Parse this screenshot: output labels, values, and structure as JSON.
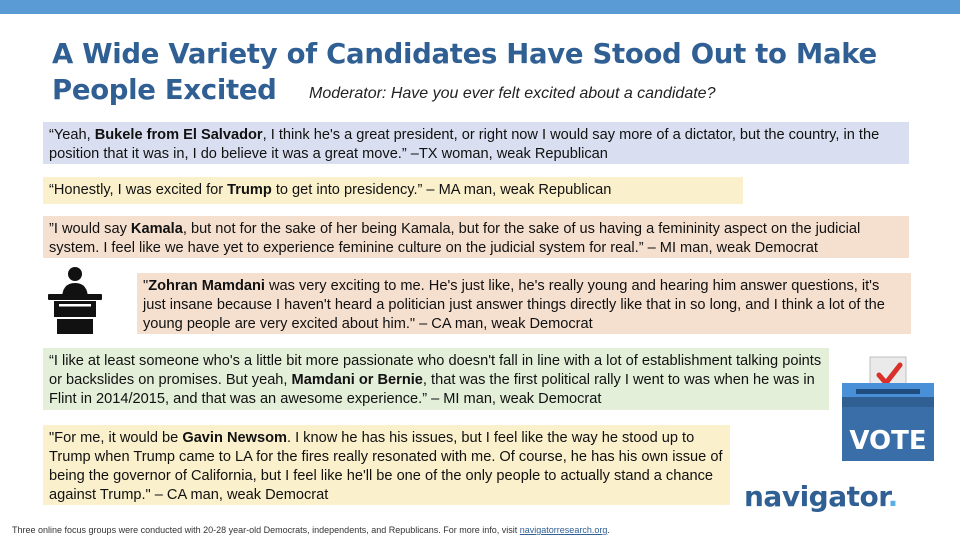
{
  "title": "A Wide Variety of Candidates Have Stood Out to Make People Excited",
  "moderator": "Moderator: Have you ever felt excited about a candidate?",
  "quotes": [
    {
      "pre": "“Yeah, ",
      "name": "Bukele from El Salvador",
      "post": ", I think he's a great president, or right now I would say more of a dictator, but the country, in the position that it was in, I do believe it was a great move.” –TX woman, weak Republican"
    },
    {
      "pre": "“Honestly, I was excited for ",
      "name": "Trump",
      "post": " to get into presidency.” – MA man, weak Republican"
    },
    {
      "pre": "”I would say ",
      "name": "Kamala",
      "post": ", but not for the sake of her being Kamala, but for the sake of us having a femininity aspect on the judicial system. I feel like we have yet to experience feminine culture on the judicial system for real.” – MI man, weak Democrat"
    },
    {
      "pre": "\"",
      "name": "Zohran Mamdani",
      "post": " was very exciting to me. He's just like, he's really young and hearing him answer questions, it's just insane because I haven't heard a politician just answer things directly like that in so long, and I think a lot of the young people are very excited about him.\" – CA man, weak Democrat"
    },
    {
      "pre": "“I like at least someone who's a little bit more passionate who doesn't fall in line with a lot of establishment talking points or backslides on promises. But yeah, ",
      "name": "Mamdani or Bernie",
      "post": ", that was the first political rally I went to was when he was in Flint in 2014/2015, and that was an awesome experience.” – MI man, weak Democrat"
    },
    {
      "pre": "\"For me, it would be ",
      "name": "Gavin Newsom",
      "post": ". I know he has his issues, but I feel like the way he stood up to Trump when Trump came to LA for the fires really resonated with me. Of course, he has his own issue of being the governor of California, but I feel like he'll be one of the only people to actually stand a chance against Trump.\" – CA man, weak Democrat"
    }
  ],
  "icons": {
    "podium": "podium-speaker-icon",
    "vote": "ballot-box-vote-icon"
  },
  "vote_label": "VOTE",
  "logo": {
    "word": "navigator",
    "dot": "."
  },
  "footer": {
    "text": "Three online focus groups were conducted with 20-28 year-old Democrats, independents, and Republicans. For more info, visit ",
    "link": "navigatorresearch.org",
    "end": "."
  },
  "colors": {
    "title": "#2f5f93",
    "accent_bar": "#5b9bd5",
    "republican_blue": "#d9dff0",
    "yellow": "#fbf0cc",
    "salmon": "#f5e0d0",
    "green": "#e3efd9"
  }
}
